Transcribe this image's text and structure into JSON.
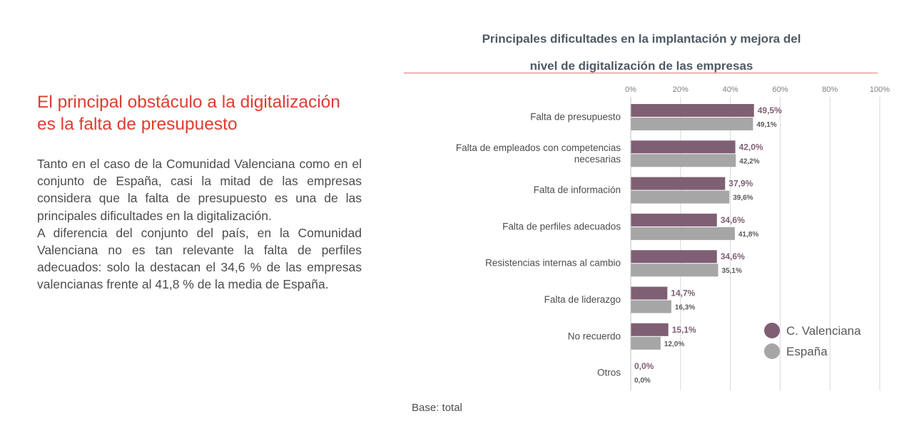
{
  "headline": "El principal obstáculo a la digitalización es la falta de presupuesto",
  "paragraphs": [
    "Tanto en el caso de la Comunidad Valenciana como en el conjunto de España, casi la mitad de las empresas considera que la falta de presupuesto es una de las principales dificultades en la digitalización.",
    "A diferencia del conjunto del país, en la Comunidad Valenciana no es tan relevante la falta de perfiles adecuados: solo la destacan el 34,6 % de las empresas valencianas  frente al 41,8 % de la media de España."
  ],
  "footnote": "Base: total",
  "colors": {
    "valencia": "#7f5f74",
    "spain": "#a6a6a6",
    "headline": "#e03c31"
  },
  "chart_data": {
    "type": "bar",
    "orientation": "horizontal",
    "title_lines": [
      "Principales dificultades en la implantación y mejora del",
      "nivel de digitalización de las empresas"
    ],
    "categories": [
      [
        "Falta de presupuesto"
      ],
      [
        "Falta de empleados con competencias",
        "necesarias"
      ],
      [
        "Falta de información"
      ],
      [
        "Falta de perfiles adecuados"
      ],
      [
        "Resistencias internas al cambio"
      ],
      [
        "Falta de liderazgo"
      ],
      [
        "No recuerdo"
      ],
      [
        "Otros"
      ]
    ],
    "series": [
      {
        "name": "C. Valenciana",
        "values": [
          49.5,
          42.0,
          37.9,
          34.6,
          34.6,
          14.7,
          15.1,
          0.0
        ],
        "labels": [
          "49,5%",
          "42,0%",
          "37,9%",
          "34,6%",
          "34,6%",
          "14,7%",
          "15,1%",
          "0,0%"
        ]
      },
      {
        "name": "España",
        "values": [
          49.1,
          42.2,
          39.6,
          41.8,
          35.1,
          16.3,
          12.0,
          0.0
        ],
        "labels": [
          "49,1%",
          "42,2%",
          "39,6%",
          "41,8%",
          "35,1%",
          "16,3%",
          "12,0%",
          "0,0%"
        ]
      }
    ],
    "xlim": [
      0,
      100
    ],
    "ticks": [
      0,
      20,
      40,
      60,
      80,
      100
    ],
    "tick_labels": [
      "0%",
      "20%",
      "40%",
      "60%",
      "80%",
      "100%"
    ],
    "grid": true,
    "legend_position": "right"
  }
}
